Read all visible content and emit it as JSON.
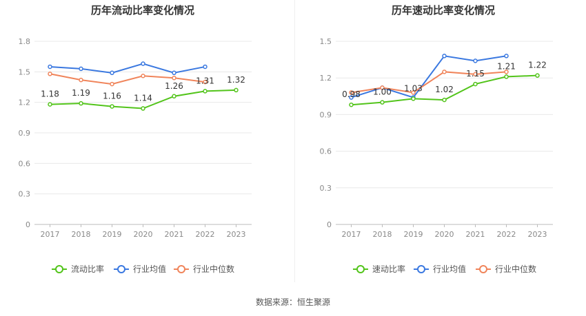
{
  "source": "数据来源：恒生聚源",
  "chart_data": [
    {
      "type": "line",
      "title": "历年流动比率变化情况",
      "categories": [
        "2017",
        "2018",
        "2019",
        "2020",
        "2021",
        "2022",
        "2023"
      ],
      "yticks": [
        "0",
        "0.3",
        "0.6",
        "0.9",
        "1.2",
        "1.5",
        "1.8"
      ],
      "ylim": [
        0,
        1.8
      ],
      "grid": true,
      "legend_position": "bottom",
      "series": [
        {
          "name": "流动比率",
          "values": [
            1.18,
            1.19,
            1.16,
            1.14,
            1.26,
            1.31,
            1.32
          ],
          "color": "#52c41a",
          "labels": [
            "1.18",
            "1.19",
            "1.16",
            "1.14",
            "1.26",
            "1.31",
            "1.32"
          ]
        },
        {
          "name": "行业均值",
          "values": [
            1.55,
            1.53,
            1.49,
            1.58,
            1.49,
            1.55,
            null
          ],
          "color": "#3a78e0"
        },
        {
          "name": "行业中位数",
          "values": [
            1.48,
            1.42,
            1.38,
            1.46,
            1.44,
            1.4,
            null
          ],
          "color": "#f0845a"
        }
      ]
    },
    {
      "type": "line",
      "title": "历年速动比率变化情况",
      "categories": [
        "2017",
        "2018",
        "2019",
        "2020",
        "2021",
        "2022",
        "2023"
      ],
      "yticks": [
        "0",
        "0.3",
        "0.6",
        "0.9",
        "1.2",
        "1.5"
      ],
      "ylim": [
        0,
        1.5
      ],
      "grid": true,
      "legend_position": "bottom",
      "series": [
        {
          "name": "速动比率",
          "values": [
            0.98,
            1.0,
            1.03,
            1.02,
            1.15,
            1.21,
            1.22
          ],
          "color": "#52c41a",
          "labels": [
            "0.98",
            "1.00",
            "1.03",
            "1.02",
            "1.15",
            "1.21",
            "1.22"
          ]
        },
        {
          "name": "行业均值",
          "values": [
            1.04,
            1.12,
            1.04,
            1.38,
            1.34,
            1.38,
            null
          ],
          "color": "#3a78e0"
        },
        {
          "name": "行业中位数",
          "values": [
            1.08,
            1.12,
            1.08,
            1.25,
            1.23,
            1.25,
            null
          ],
          "color": "#f0845a"
        }
      ]
    }
  ]
}
